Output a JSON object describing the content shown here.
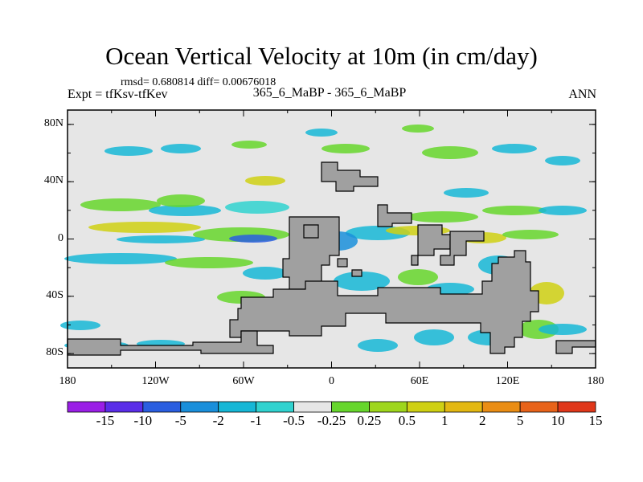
{
  "chart_data": {
    "type": "heatmap",
    "title": "Ocean Vertical Velocity at 10m (in cm/day)",
    "stats_text": "rmsd= 0.680814  diff= 0.00676018",
    "left_label": "Expt = tfKsv-tfKev",
    "center_label": "365_6_MaBP - 365_6_MaBP",
    "right_label": "ANN",
    "xlim": [
      -180,
      180
    ],
    "ylim": [
      -90,
      90
    ],
    "x_ticks": [
      {
        "value": -180,
        "label": "180"
      },
      {
        "value": -120,
        "label": "120W"
      },
      {
        "value": -60,
        "label": "60W"
      },
      {
        "value": 0,
        "label": "0"
      },
      {
        "value": 60,
        "label": "60E"
      },
      {
        "value": 120,
        "label": "120E"
      },
      {
        "value": 180,
        "label": "180"
      }
    ],
    "y_ticks": [
      {
        "value": 80,
        "label": "80N"
      },
      {
        "value": 40,
        "label": "40N"
      },
      {
        "value": 0,
        "label": "0"
      },
      {
        "value": -40,
        "label": "40S"
      },
      {
        "value": -80,
        "label": "80S"
      }
    ],
    "colorbar": {
      "colors": [
        "#9a1fe6",
        "#5a2de8",
        "#2a5ee0",
        "#1a8fdb",
        "#16b7d6",
        "#30d2cf",
        "#e6e6e6",
        "#66d62c",
        "#9ed61c",
        "#cfd013",
        "#e3b812",
        "#ea8d14",
        "#e8631a",
        "#e0371a"
      ],
      "labels": [
        "-15",
        "-10",
        "-5",
        "-2",
        "-1",
        "-0.5",
        "-0.25",
        "0.25",
        "0.5",
        "1",
        "2",
        "5",
        "10",
        "15"
      ]
    },
    "map_colors": {
      "background": "#e6e6e6",
      "land": "#a0a0a0",
      "frame": "#000000"
    }
  }
}
